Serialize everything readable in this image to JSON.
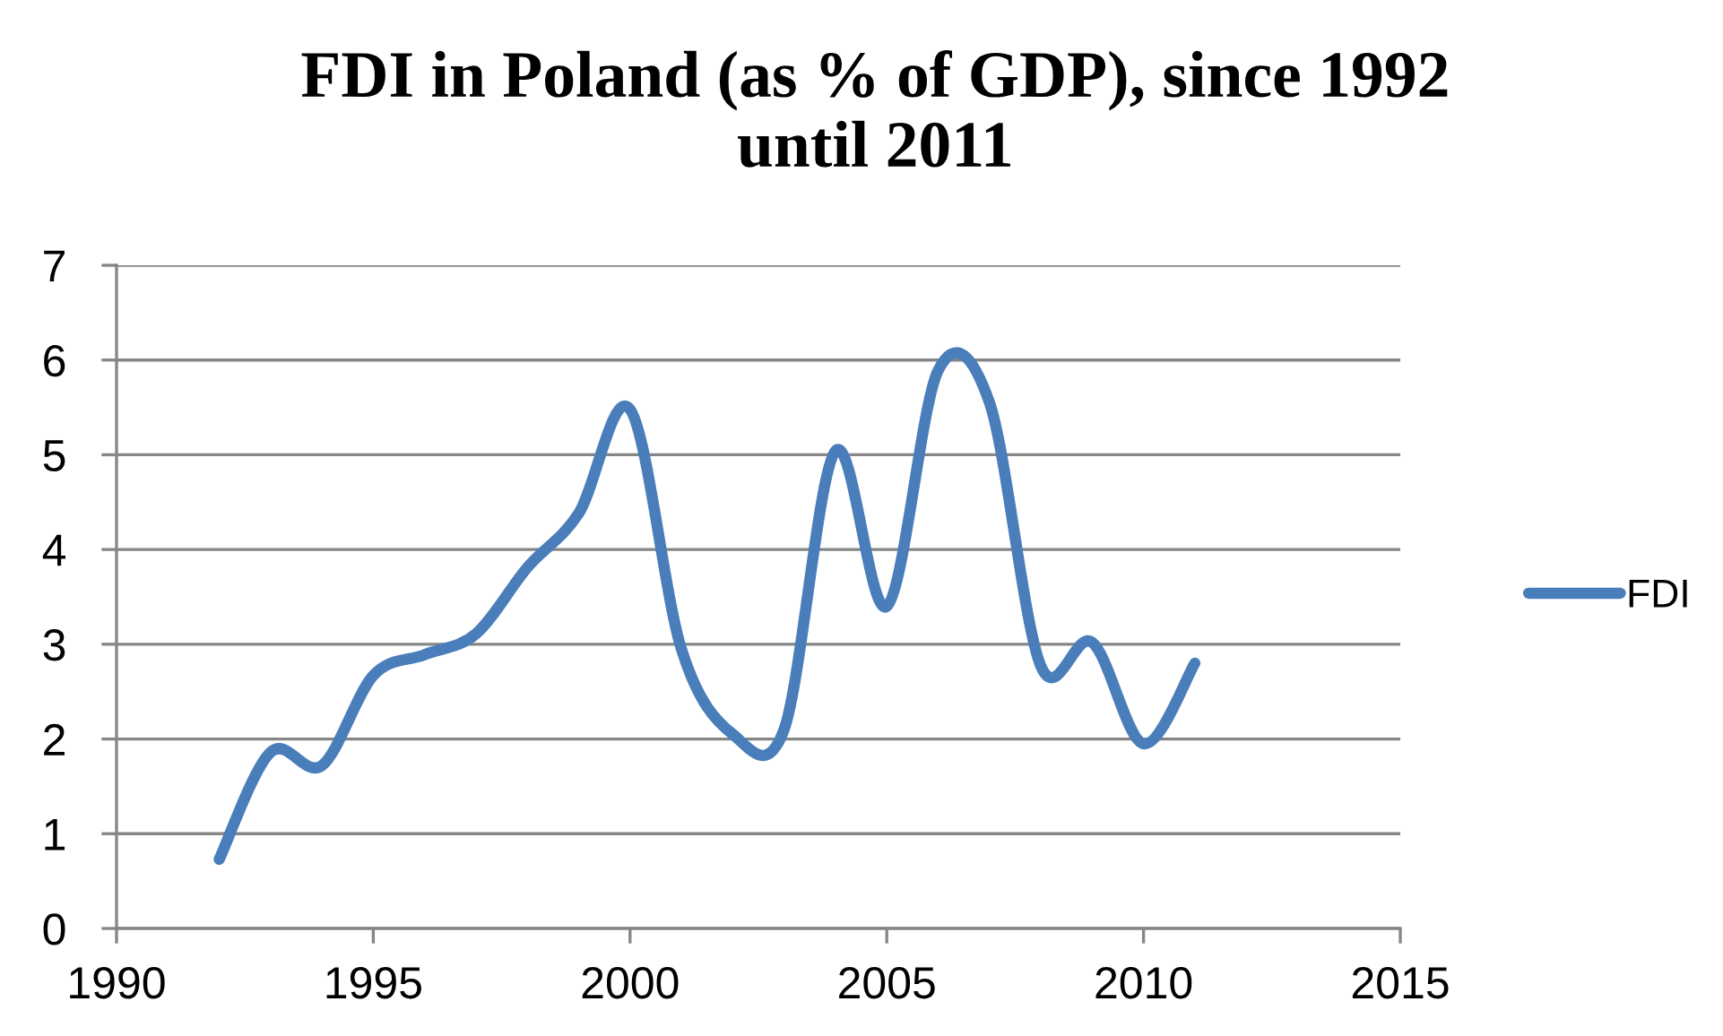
{
  "chart_data": {
    "type": "line",
    "title": "FDI in Poland (as % of GDP), since 1992\nuntil 2011",
    "x": [
      1992,
      1993,
      1994,
      1995,
      1996,
      1997,
      1998,
      1999,
      2000,
      2001,
      2002,
      2003,
      2004,
      2005,
      2006,
      2007,
      2008,
      2009,
      2010,
      2011
    ],
    "series": [
      {
        "name": "FDI",
        "color": "#4a7ebb",
        "values": [
          0.73,
          1.86,
          1.72,
          2.67,
          2.89,
          3.11,
          3.81,
          4.38,
          5.48,
          2.95,
          2.05,
          2.1,
          5.04,
          3.4,
          5.89,
          5.55,
          2.77,
          3.02,
          1.95,
          2.8
        ]
      }
    ],
    "xlim": [
      1990,
      2015
    ],
    "xticks": [
      1990,
      1995,
      2000,
      2005,
      2010,
      2015
    ],
    "ylim": [
      0,
      7
    ],
    "yticks": [
      0,
      1,
      2,
      3,
      4,
      5,
      6,
      7
    ],
    "grid": "y",
    "legend": "right",
    "marker": "none",
    "line_style": "solid"
  }
}
